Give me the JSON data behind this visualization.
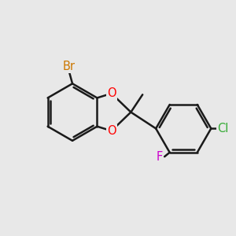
{
  "background_color": "#e8e8e8",
  "bond_color": "#1a1a1a",
  "bond_width": 1.8,
  "atoms": {
    "Br": {
      "color": "#cc7700",
      "fontsize": 10.5
    },
    "O": {
      "color": "#ff0000",
      "fontsize": 10.5
    },
    "F": {
      "color": "#cc00cc",
      "fontsize": 10.5
    },
    "Cl": {
      "color": "#33aa33",
      "fontsize": 10.5
    }
  },
  "figsize": [
    3.0,
    3.0
  ],
  "dpi": 100
}
